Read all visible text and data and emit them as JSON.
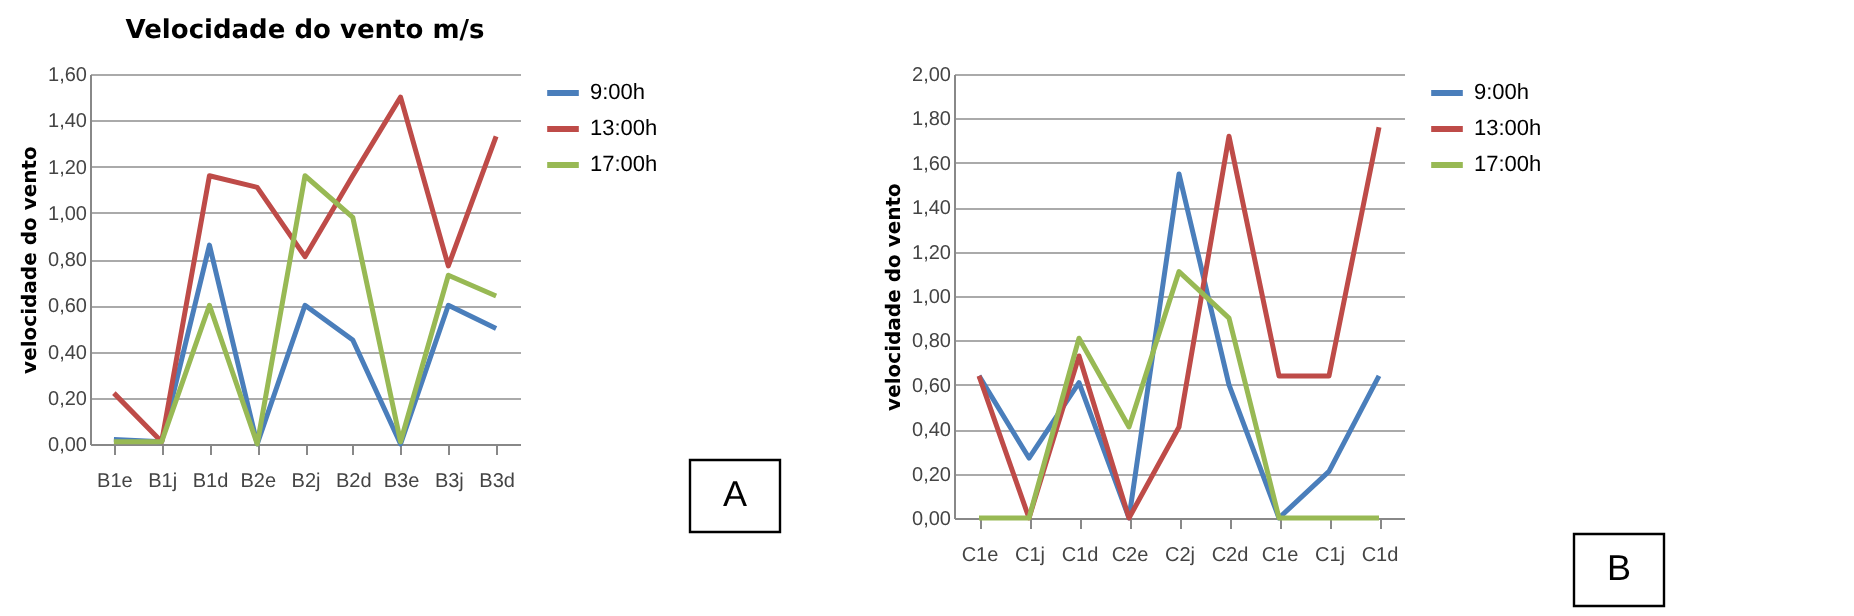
{
  "chart_data": [
    {
      "type": "line",
      "title": "Velocidade do vento m/s",
      "ylabel": "velocidade do vento",
      "categories": [
        "B1e",
        "B1j",
        "B1d",
        "B2e",
        "B2j",
        "B2d",
        "B3e",
        "B3j",
        "B3d"
      ],
      "series": [
        {
          "name": "9:00h",
          "color": "#4a7ebb",
          "values": [
            0.02,
            0.01,
            0.86,
            0.0,
            0.6,
            0.45,
            0.0,
            0.6,
            0.5
          ]
        },
        {
          "name": "13:00h",
          "color": "#be4b48",
          "values": [
            0.22,
            0.01,
            1.16,
            1.11,
            0.81,
            1.16,
            1.5,
            0.77,
            1.33
          ]
        },
        {
          "name": "17:00h",
          "color": "#98b954",
          "values": [
            0.01,
            0.01,
            0.6,
            0.0,
            1.16,
            0.98,
            0.01,
            0.73,
            0.64
          ]
        }
      ],
      "ylim": [
        0,
        1.6
      ],
      "yticks": [
        {
          "value": 0,
          "label": "0,00"
        },
        {
          "value": 0.2,
          "label": "0,20"
        },
        {
          "value": 0.4,
          "label": "0,40"
        },
        {
          "value": 0.6,
          "label": "0,60"
        },
        {
          "value": 0.8,
          "label": "0,80"
        },
        {
          "value": 1.0,
          "label": "1,00"
        },
        {
          "value": 1.2,
          "label": "1,20"
        },
        {
          "value": 1.4,
          "label": "1,40"
        },
        {
          "value": 1.6,
          "label": "1,60"
        }
      ],
      "grid": "y",
      "legend": "right",
      "annotations": [
        "A"
      ]
    },
    {
      "type": "line",
      "ylabel": "velocidade do vento",
      "categories": [
        "C1e",
        "C1j",
        "C1d",
        "C2e",
        "C2j",
        "C2d",
        "C1e",
        "C1j",
        "C1d"
      ],
      "series": [
        {
          "name": "9:00h",
          "color": "#4a7ebb",
          "values": [
            0.64,
            0.27,
            0.61,
            0.0,
            1.55,
            0.6,
            0.0,
            0.21,
            0.64
          ]
        },
        {
          "name": "13:00h",
          "color": "#be4b48",
          "values": [
            0.64,
            0.0,
            0.73,
            0.0,
            0.41,
            1.72,
            0.64,
            0.64,
            1.76
          ]
        },
        {
          "name": "17:00h",
          "color": "#98b954",
          "values": [
            0.0,
            0.0,
            0.81,
            0.41,
            1.11,
            0.9,
            0.0,
            0.0,
            0.0
          ]
        }
      ],
      "ylim": [
        0,
        2.0
      ],
      "yticks": [
        {
          "value": 0,
          "label": "0,00"
        },
        {
          "value": 0.2,
          "label": "0,20"
        },
        {
          "value": 0.4,
          "label": "0,40"
        },
        {
          "value": 0.6,
          "label": "0,60"
        },
        {
          "value": 0.8,
          "label": "0,80"
        },
        {
          "value": 1.0,
          "label": "1,00"
        },
        {
          "value": 1.2,
          "label": "1,20"
        },
        {
          "value": 1.4,
          "label": "1,40"
        },
        {
          "value": 1.6,
          "label": "1,60"
        },
        {
          "value": 1.8,
          "label": "1,80"
        },
        {
          "value": 2.0,
          "label": "2,00"
        }
      ],
      "grid": "y",
      "legend": "right",
      "annotations": [
        "B"
      ]
    }
  ]
}
